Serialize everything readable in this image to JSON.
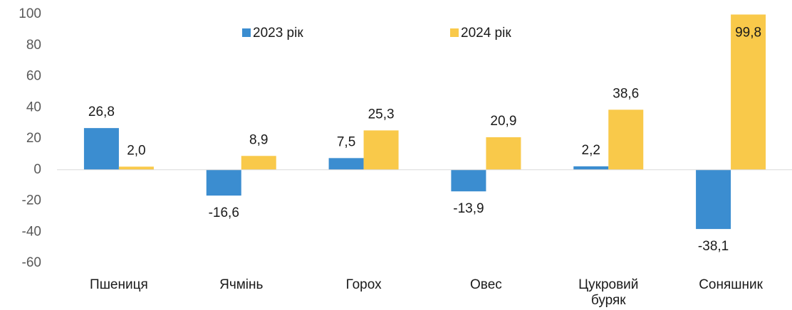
{
  "chart_data": {
    "type": "bar",
    "categories": [
      "Пшениця",
      "Ячмінь",
      "Горох",
      "Овес",
      "Цукровий буряк",
      "Соняшник"
    ],
    "series": [
      {
        "name": "2023 рік",
        "color": "#3b8dd0",
        "values": [
          26.8,
          -16.6,
          7.5,
          -13.9,
          2.2,
          -38.1
        ],
        "value_labels": [
          "26,8",
          "-16,6",
          "7,5",
          "-13,9",
          "2,2",
          "-38,1"
        ]
      },
      {
        "name": "2024 рік",
        "color": "#f9c94a",
        "values": [
          2.0,
          8.9,
          25.3,
          20.9,
          38.6,
          99.8
        ],
        "value_labels": [
          "2,0",
          "8,9",
          "25,3",
          "20,9",
          "38,6",
          "99,8"
        ]
      }
    ],
    "ylim": [
      -60,
      100
    ],
    "yticks": [
      -60,
      -40,
      -20,
      0,
      20,
      40,
      60,
      80,
      100
    ],
    "grid": false,
    "legend": "top"
  }
}
